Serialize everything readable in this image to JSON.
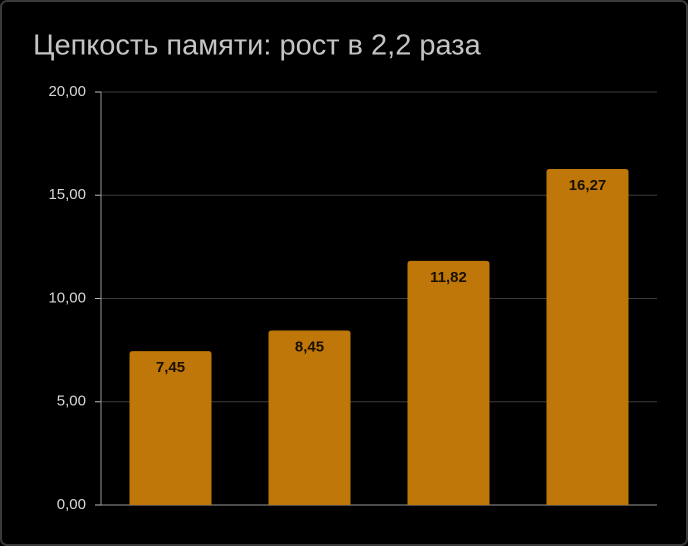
{
  "chart_data": {
    "type": "bar",
    "title": "Цепкость памяти: рост в 2,2 раза",
    "categories": [
      null,
      null,
      null,
      null
    ],
    "values": [
      7.45,
      8.45,
      11.82,
      16.27
    ],
    "value_labels": [
      "7,45",
      "8,45",
      "11,82",
      "16,27"
    ],
    "color": "#bf7709",
    "ylim": [
      0,
      20
    ],
    "yticks": [
      {
        "value": 0,
        "label": "0,00"
      },
      {
        "value": 5,
        "label": "5,00"
      },
      {
        "value": 10,
        "label": "10,00"
      },
      {
        "value": 15,
        "label": "15,00"
      },
      {
        "value": 20,
        "label": "20,00"
      }
    ],
    "grid": true
  }
}
